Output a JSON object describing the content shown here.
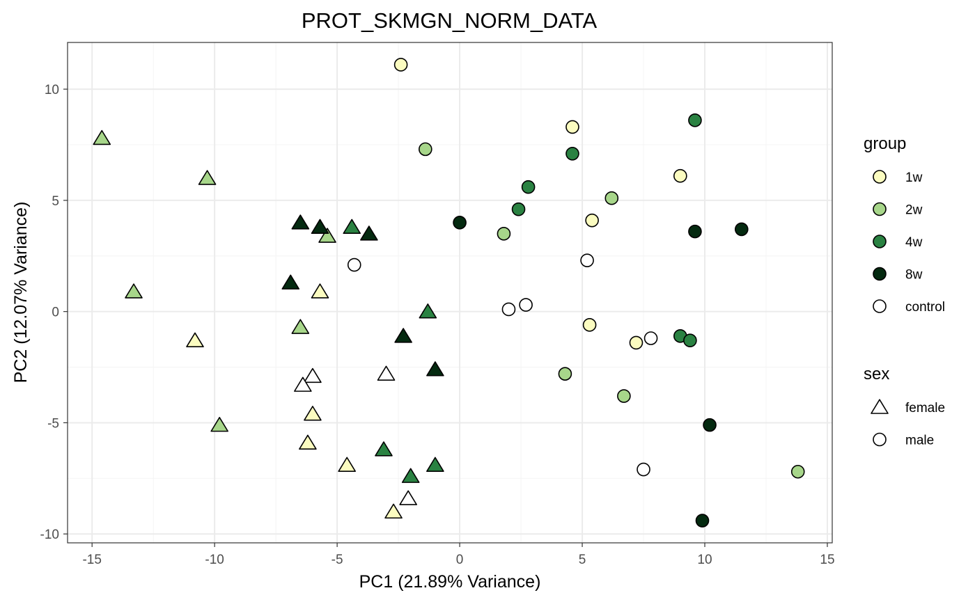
{
  "colors": {
    "1w": "#fbfcc0",
    "2w": "#a7d68a",
    "4w": "#2a8242",
    "8w": "#042a10",
    "control": "#ffffff",
    "grid_major": "#ebebeb",
    "grid_minor": "#f4f4f4",
    "panel_border": "#333333",
    "text": "#000000",
    "tick_text": "#4d4d4d"
  },
  "chart_data": {
    "type": "scatter",
    "title": "PROT_SKMGN_NORM_DATA",
    "xlabel": "PC1 (21.89% Variance)",
    "ylabel": "PC2 (12.07% Variance)",
    "xlim": [
      -16,
      15.2
    ],
    "ylim": [
      -10.4,
      12.1
    ],
    "x_ticks": [
      -15,
      -10,
      -5,
      0,
      5,
      10,
      15
    ],
    "x_tick_labels": [
      "-15",
      "-10",
      "-5",
      "0",
      "5",
      "10",
      "15"
    ],
    "y_ticks": [
      -10,
      -5,
      0,
      5,
      10
    ],
    "y_tick_labels": [
      "-10",
      "-5",
      "0",
      "5",
      "10"
    ],
    "grid": true,
    "legend_position": "right",
    "legends": [
      {
        "title": "group",
        "entries": [
          {
            "label": "1w",
            "shape": "circle",
            "color_key": "1w"
          },
          {
            "label": "2w",
            "shape": "circle",
            "color_key": "2w"
          },
          {
            "label": "4w",
            "shape": "circle",
            "color_key": "4w"
          },
          {
            "label": "8w",
            "shape": "circle",
            "color_key": "8w"
          },
          {
            "label": "control",
            "shape": "circle",
            "color_key": "control"
          }
        ]
      },
      {
        "title": "sex",
        "entries": [
          {
            "label": "female",
            "shape": "triangle",
            "color_key": "control"
          },
          {
            "label": "male",
            "shape": "circle",
            "color_key": "control"
          }
        ]
      }
    ],
    "series": [
      {
        "name": "1w",
        "group": "1w",
        "points": [
          {
            "x": -2.4,
            "y": 11.1,
            "sex": "male"
          },
          {
            "x": 4.6,
            "y": 8.3,
            "sex": "male"
          },
          {
            "x": 9.0,
            "y": 6.1,
            "sex": "male"
          },
          {
            "x": 5.4,
            "y": 4.1,
            "sex": "male"
          },
          {
            "x": 5.3,
            "y": -0.6,
            "sex": "male"
          },
          {
            "x": 7.2,
            "y": -1.4,
            "sex": "male"
          },
          {
            "x": -5.7,
            "y": 0.9,
            "sex": "female"
          },
          {
            "x": -10.8,
            "y": -1.3,
            "sex": "female"
          },
          {
            "x": -6.0,
            "y": -4.6,
            "sex": "female"
          },
          {
            "x": -6.2,
            "y": -5.9,
            "sex": "female"
          },
          {
            "x": -4.6,
            "y": -6.9,
            "sex": "female"
          },
          {
            "x": -2.7,
            "y": -9.0,
            "sex": "female"
          }
        ]
      },
      {
        "name": "2w",
        "group": "2w",
        "points": [
          {
            "x": -1.4,
            "y": 7.3,
            "sex": "male"
          },
          {
            "x": 6.2,
            "y": 5.1,
            "sex": "male"
          },
          {
            "x": 1.8,
            "y": 3.5,
            "sex": "male"
          },
          {
            "x": 4.3,
            "y": -2.8,
            "sex": "male"
          },
          {
            "x": 6.7,
            "y": -3.8,
            "sex": "male"
          },
          {
            "x": 13.8,
            "y": -7.2,
            "sex": "male"
          },
          {
            "x": -14.6,
            "y": 7.8,
            "sex": "female"
          },
          {
            "x": -10.3,
            "y": 6.0,
            "sex": "female"
          },
          {
            "x": -5.4,
            "y": 3.4,
            "sex": "female"
          },
          {
            "x": -13.3,
            "y": 0.9,
            "sex": "female"
          },
          {
            "x": -6.5,
            "y": -0.7,
            "sex": "female"
          },
          {
            "x": -9.8,
            "y": -5.1,
            "sex": "female"
          }
        ]
      },
      {
        "name": "4w",
        "group": "4w",
        "points": [
          {
            "x": 9.6,
            "y": 8.6,
            "sex": "male"
          },
          {
            "x": 4.6,
            "y": 7.1,
            "sex": "male"
          },
          {
            "x": 2.8,
            "y": 5.6,
            "sex": "male"
          },
          {
            "x": 2.4,
            "y": 4.6,
            "sex": "male"
          },
          {
            "x": 9.0,
            "y": -1.1,
            "sex": "male"
          },
          {
            "x": 9.4,
            "y": -1.3,
            "sex": "male"
          },
          {
            "x": -4.4,
            "y": 3.8,
            "sex": "female"
          },
          {
            "x": -1.3,
            "y": 0.0,
            "sex": "female"
          },
          {
            "x": -3.1,
            "y": -6.2,
            "sex": "female"
          },
          {
            "x": -2.0,
            "y": -7.4,
            "sex": "female"
          },
          {
            "x": -1.0,
            "y": -6.9,
            "sex": "female"
          }
        ]
      },
      {
        "name": "8w",
        "group": "8w",
        "points": [
          {
            "x": 0.0,
            "y": 4.0,
            "sex": "male"
          },
          {
            "x": 9.6,
            "y": 3.6,
            "sex": "male"
          },
          {
            "x": 11.5,
            "y": 3.7,
            "sex": "male"
          },
          {
            "x": 10.2,
            "y": -5.1,
            "sex": "male"
          },
          {
            "x": 9.9,
            "y": -9.4,
            "sex": "male"
          },
          {
            "x": -6.5,
            "y": 4.0,
            "sex": "female"
          },
          {
            "x": -5.7,
            "y": 3.8,
            "sex": "female"
          },
          {
            "x": -3.7,
            "y": 3.5,
            "sex": "female"
          },
          {
            "x": -6.9,
            "y": 1.3,
            "sex": "female"
          },
          {
            "x": -2.3,
            "y": -1.1,
            "sex": "female"
          },
          {
            "x": -1.0,
            "y": -2.6,
            "sex": "female"
          }
        ]
      },
      {
        "name": "control",
        "group": "control",
        "points": [
          {
            "x": -4.3,
            "y": 2.1,
            "sex": "male"
          },
          {
            "x": 5.2,
            "y": 2.3,
            "sex": "male"
          },
          {
            "x": 2.0,
            "y": 0.1,
            "sex": "male"
          },
          {
            "x": 2.7,
            "y": 0.3,
            "sex": "male"
          },
          {
            "x": 7.8,
            "y": -1.2,
            "sex": "male"
          },
          {
            "x": 7.5,
            "y": -7.1,
            "sex": "male"
          },
          {
            "x": -3.0,
            "y": -2.8,
            "sex": "female"
          },
          {
            "x": -6.0,
            "y": -2.9,
            "sex": "female"
          },
          {
            "x": -6.4,
            "y": -3.3,
            "sex": "female"
          },
          {
            "x": -2.1,
            "y": -8.4,
            "sex": "female"
          }
        ]
      }
    ]
  }
}
